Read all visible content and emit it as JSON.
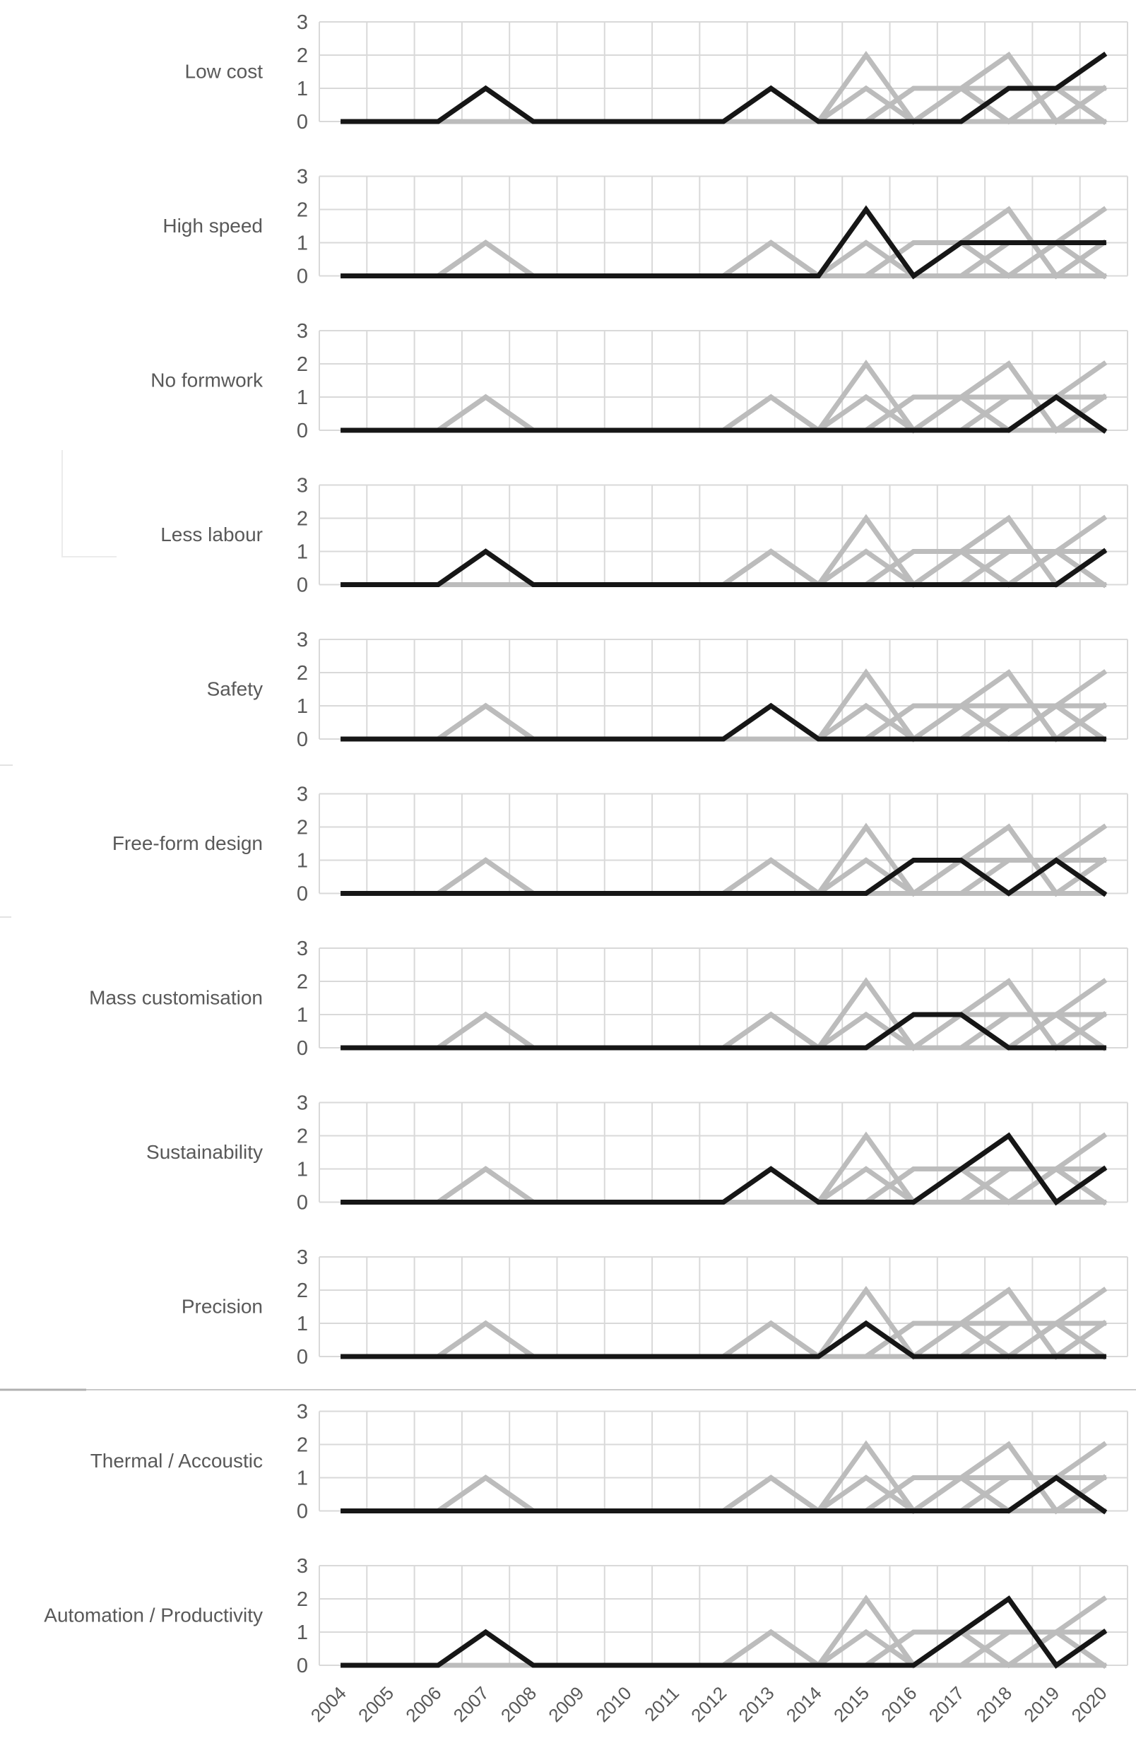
{
  "figure": {
    "description": "Small-multiples trend chart of cited benefits per year; one row per benefit, own series highlighted black, all other series shown gray",
    "background": "#ffffff"
  },
  "chart_data": {
    "type": "line",
    "title": "",
    "xlabel": "",
    "ylabel": "",
    "x": [
      2004,
      2005,
      2006,
      2007,
      2008,
      2009,
      2010,
      2011,
      2012,
      2013,
      2014,
      2015,
      2016,
      2017,
      2018,
      2019,
      2020
    ],
    "ylim": [
      0,
      3
    ],
    "yticks": [
      3,
      2,
      1,
      0
    ],
    "grid": true,
    "legend": false,
    "layout": "11 stacked panels sharing the x axis; each panel draws every series in context gray and its own series in black",
    "panels": [
      "Low cost",
      "High speed",
      "No formwork",
      "Less labour",
      "Safety",
      "Free-form design",
      "Mass customisation",
      "Sustainability",
      "Precision",
      "Thermal / Accoustic",
      "Automation / Productivity"
    ],
    "series": [
      {
        "name": "Low cost",
        "slug": "low-cost",
        "values": [
          0,
          0,
          0,
          1,
          0,
          0,
          0,
          0,
          0,
          1,
          0,
          0,
          0,
          0,
          1,
          1,
          2
        ]
      },
      {
        "name": "High speed",
        "slug": "high-speed",
        "values": [
          0,
          0,
          0,
          0,
          0,
          0,
          0,
          0,
          0,
          0,
          0,
          2,
          0,
          1,
          1,
          1,
          1
        ]
      },
      {
        "name": "No formwork",
        "slug": "no-formwork",
        "values": [
          0,
          0,
          0,
          0,
          0,
          0,
          0,
          0,
          0,
          0,
          0,
          0,
          0,
          0,
          0,
          1,
          0
        ]
      },
      {
        "name": "Less labour",
        "slug": "less-labour",
        "values": [
          0,
          0,
          0,
          1,
          0,
          0,
          0,
          0,
          0,
          0,
          0,
          0,
          0,
          0,
          0,
          0,
          1
        ]
      },
      {
        "name": "Safety",
        "slug": "safety",
        "values": [
          0,
          0,
          0,
          0,
          0,
          0,
          0,
          0,
          0,
          1,
          0,
          0,
          0,
          0,
          0,
          0,
          0
        ]
      },
      {
        "name": "Free-form design",
        "slug": "free-form-design",
        "values": [
          0,
          0,
          0,
          0,
          0,
          0,
          0,
          0,
          0,
          0,
          0,
          0,
          1,
          1,
          0,
          1,
          0
        ]
      },
      {
        "name": "Mass customisation",
        "slug": "mass-customisation",
        "values": [
          0,
          0,
          0,
          0,
          0,
          0,
          0,
          0,
          0,
          0,
          0,
          0,
          1,
          1,
          0,
          0,
          0
        ]
      },
      {
        "name": "Sustainability",
        "slug": "sustainability",
        "values": [
          0,
          0,
          0,
          0,
          0,
          0,
          0,
          0,
          0,
          1,
          0,
          0,
          0,
          1,
          2,
          0,
          1
        ]
      },
      {
        "name": "Precision",
        "slug": "precision",
        "values": [
          0,
          0,
          0,
          0,
          0,
          0,
          0,
          0,
          0,
          0,
          0,
          1,
          0,
          0,
          0,
          0,
          0
        ]
      },
      {
        "name": "Thermal / Accoustic",
        "slug": "thermal-accoustic",
        "values": [
          0,
          0,
          0,
          0,
          0,
          0,
          0,
          0,
          0,
          0,
          0,
          0,
          0,
          0,
          0,
          1,
          0
        ]
      },
      {
        "name": "Automation / Productivity",
        "slug": "automation-productivity",
        "values": [
          0,
          0,
          0,
          1,
          0,
          0,
          0,
          0,
          0,
          0,
          0,
          0,
          0,
          1,
          2,
          0,
          1
        ]
      }
    ],
    "colors": {
      "highlight": "#161616",
      "context": "#bcbcbc",
      "grid": "#d9d9d9",
      "text": "#595959",
      "divider": "#c9c9c9",
      "background": "#ffffff"
    }
  }
}
